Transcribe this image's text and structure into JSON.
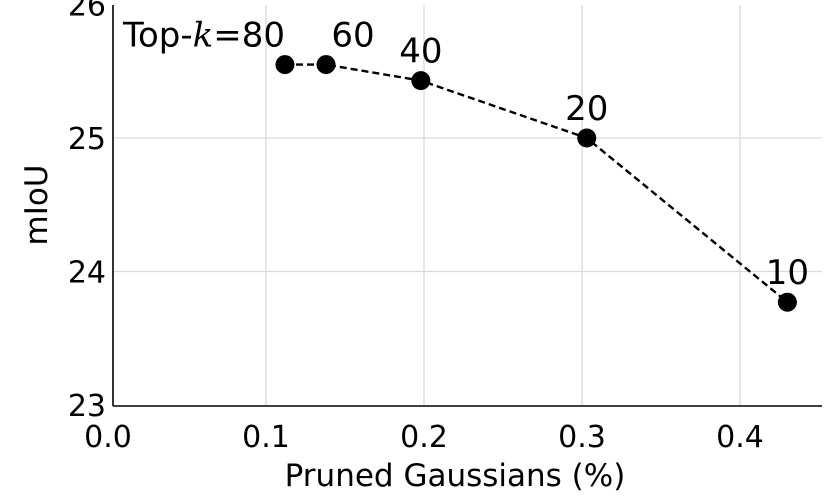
{
  "chart_data": {
    "type": "scatter",
    "xlabel": "Pruned Gaussians (%)",
    "ylabel": "mIoU",
    "xlim": [
      0.0,
      0.45
    ],
    "ylim": [
      23.0,
      26.0
    ],
    "xticks": [
      "0.0",
      "0.1",
      "0.2",
      "0.3",
      "0.4"
    ],
    "yticks": [
      "23",
      "24",
      "25",
      "26"
    ],
    "grid": true,
    "line_style": "dashed",
    "color": "#000000",
    "series": [
      {
        "points": [
          {
            "x": 0.112,
            "y": 25.55,
            "label": "Top-k=80"
          },
          {
            "x": 0.138,
            "y": 25.55,
            "label": "60"
          },
          {
            "x": 0.198,
            "y": 25.43,
            "label": "40"
          },
          {
            "x": 0.303,
            "y": 25.0,
            "label": "20"
          },
          {
            "x": 0.43,
            "y": 23.77,
            "label": "10"
          }
        ]
      }
    ]
  }
}
